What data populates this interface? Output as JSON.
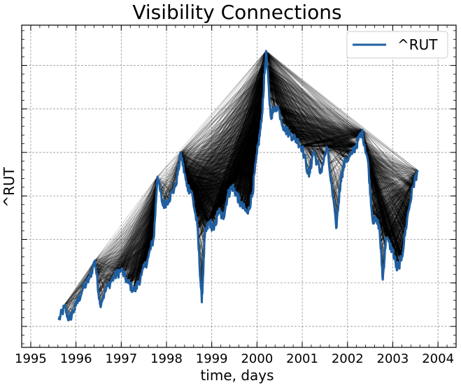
{
  "chart_data": {
    "type": "line",
    "title": "Visibility Connections",
    "xlabel": "time, days",
    "ylabel": "^RUT",
    "x_ticks": [
      "1995",
      "1996",
      "1997",
      "1998",
      "1999",
      "2000",
      "2001",
      "2002",
      "2003",
      "2004"
    ],
    "xlim": [
      1994.8,
      2004.4
    ],
    "ylim": [
      0,
      100
    ],
    "y_tick_values": [
      6.5,
      20,
      33.5,
      47,
      60.5,
      74,
      87.5
    ],
    "y_tick_labels_shown": false,
    "grid": true,
    "legend": {
      "position": "top-right",
      "entries": [
        "^RUT"
      ]
    },
    "series": [
      {
        "name": "^RUT",
        "color": "#1f5fa0",
        "points": [
          [
            1995.62,
            8.5
          ],
          [
            1995.75,
            12.5
          ],
          [
            1995.85,
            8.5
          ],
          [
            1996.0,
            13.0
          ],
          [
            1996.15,
            18.0
          ],
          [
            1996.3,
            21.5
          ],
          [
            1996.42,
            27.0
          ],
          [
            1996.53,
            13.5
          ],
          [
            1996.7,
            19.0
          ],
          [
            1996.85,
            22.0
          ],
          [
            1997.0,
            24.0
          ],
          [
            1997.15,
            20.0
          ],
          [
            1997.3,
            17.5
          ],
          [
            1997.45,
            22.5
          ],
          [
            1997.6,
            28.0
          ],
          [
            1997.72,
            34.0
          ],
          [
            1997.8,
            53.0
          ],
          [
            1997.92,
            44.0
          ],
          [
            1998.05,
            46.0
          ],
          [
            1998.2,
            50.0
          ],
          [
            1998.32,
            60.0
          ],
          [
            1998.45,
            50.0
          ],
          [
            1998.55,
            48.5
          ],
          [
            1998.68,
            38.0
          ],
          [
            1998.78,
            14.0
          ],
          [
            1998.85,
            35.0
          ],
          [
            1998.95,
            39.0
          ],
          [
            1999.05,
            36.5
          ],
          [
            1999.15,
            42.5
          ],
          [
            1999.25,
            40.0
          ],
          [
            1999.35,
            47.0
          ],
          [
            1999.45,
            50.0
          ],
          [
            1999.55,
            47.5
          ],
          [
            1999.65,
            44.0
          ],
          [
            1999.8,
            41.5
          ],
          [
            1999.9,
            48.0
          ],
          [
            2000.0,
            60.0
          ],
          [
            2000.1,
            70.0
          ],
          [
            2000.2,
            92.0
          ],
          [
            2000.3,
            72.0
          ],
          [
            2000.45,
            75.0
          ],
          [
            2000.6,
            68.0
          ],
          [
            2000.75,
            66.0
          ],
          [
            2000.9,
            64.0
          ],
          [
            2001.0,
            62.0
          ],
          [
            2001.15,
            53.0
          ],
          [
            2001.25,
            61.0
          ],
          [
            2001.4,
            54.0
          ],
          [
            2001.55,
            62.0
          ],
          [
            2001.75,
            37.0
          ],
          [
            2001.85,
            52.0
          ],
          [
            2001.95,
            58.0
          ],
          [
            2002.1,
            60.0
          ],
          [
            2002.2,
            63.0
          ],
          [
            2002.32,
            67.0
          ],
          [
            2002.45,
            58.0
          ],
          [
            2002.55,
            40.0
          ],
          [
            2002.7,
            38.0
          ],
          [
            2002.78,
            21.0
          ],
          [
            2002.85,
            34.0
          ],
          [
            2003.0,
            30.0
          ],
          [
            2003.1,
            24.0
          ],
          [
            2003.2,
            28.0
          ],
          [
            2003.32,
            40.0
          ],
          [
            2003.45,
            50.0
          ],
          [
            2003.55,
            55.0
          ]
        ]
      }
    ]
  }
}
